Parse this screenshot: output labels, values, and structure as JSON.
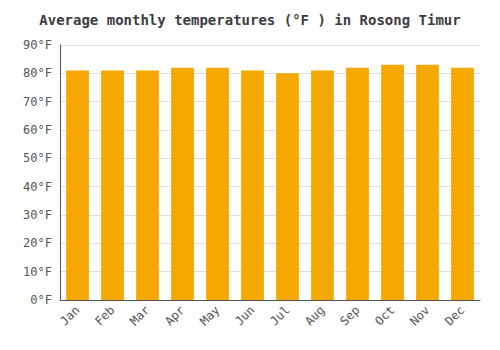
{
  "chart_data": {
    "type": "bar",
    "title": "Average monthly temperatures (°F ) in Rosong Timur",
    "categories": [
      "Jan",
      "Feb",
      "Mar",
      "Apr",
      "May",
      "Jun",
      "Jul",
      "Aug",
      "Sep",
      "Oct",
      "Nov",
      "Dec"
    ],
    "values": [
      81,
      81,
      81,
      82,
      82,
      81,
      80,
      81,
      82,
      83,
      83,
      82
    ],
    "color": "#F5A800",
    "ylim": [
      0,
      90
    ],
    "yticks": [
      {
        "value": 0,
        "label": "0°F"
      },
      {
        "value": 10,
        "label": "10°F"
      },
      {
        "value": 20,
        "label": "20°F"
      },
      {
        "value": 30,
        "label": "30°F"
      },
      {
        "value": 40,
        "label": "40°F"
      },
      {
        "value": 50,
        "label": "50°F"
      },
      {
        "value": 60,
        "label": "60°F"
      },
      {
        "value": 70,
        "label": "70°F"
      },
      {
        "value": 80,
        "label": "80°F"
      },
      {
        "value": 90,
        "label": "90°F"
      }
    ],
    "grid": true
  }
}
